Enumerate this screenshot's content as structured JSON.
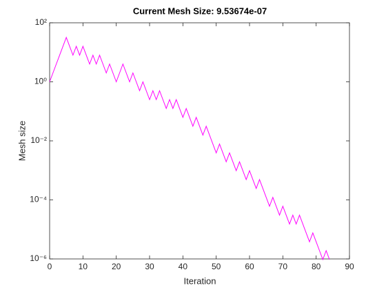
{
  "chart_data": {
    "type": "line",
    "title": "Current Mesh Size: 9.53674e-07",
    "xlabel": "Iteration",
    "ylabel": "Mesh size",
    "yscale": "log",
    "xlim": [
      0,
      90
    ],
    "ylim": [
      1e-06,
      100
    ],
    "xticks": [
      0,
      10,
      20,
      30,
      40,
      50,
      60,
      70,
      80,
      90
    ],
    "yticks": [
      {
        "value": 100,
        "label": "10²"
      },
      {
        "value": 1,
        "label": "10⁰"
      },
      {
        "value": 0.01,
        "label": "10⁻²"
      },
      {
        "value": 0.0001,
        "label": "10⁻⁴"
      },
      {
        "value": 1e-06,
        "label": "10⁻⁶"
      }
    ],
    "x": [
      0,
      1,
      2,
      3,
      4,
      5,
      6,
      7,
      8,
      9,
      10,
      11,
      12,
      13,
      14,
      15,
      16,
      17,
      18,
      19,
      20,
      21,
      22,
      23,
      24,
      25,
      26,
      27,
      28,
      29,
      30,
      31,
      32,
      33,
      34,
      35,
      36,
      37,
      38,
      39,
      40,
      41,
      42,
      43,
      44,
      45,
      46,
      47,
      48,
      49,
      50,
      51,
      52,
      53,
      54,
      55,
      56,
      57,
      58,
      59,
      60,
      61,
      62,
      63,
      64,
      65,
      66,
      67,
      68,
      69,
      70,
      71,
      72,
      73,
      74,
      75,
      76,
      77,
      78,
      79,
      80,
      81,
      82,
      83,
      84
    ],
    "series": [
      {
        "color": "#ff00ff",
        "values": [
          1,
          2,
          4,
          8,
          16,
          32,
          16,
          8,
          16,
          8,
          16,
          8,
          4,
          8,
          4,
          8,
          4,
          2,
          4,
          2,
          1,
          2,
          4,
          2,
          1,
          2,
          1,
          0.5,
          1,
          0.5,
          0.25,
          0.5,
          0.25,
          0.5,
          0.25,
          0.125,
          0.25,
          0.125,
          0.25,
          0.125,
          0.0625,
          0.125,
          0.0625,
          0.03125,
          0.0625,
          0.03125,
          0.015625,
          0.03125,
          0.015625,
          0.0078125,
          0.00390625,
          0.0078125,
          0.00390625,
          0.001953125,
          0.00390625,
          0.001953125,
          0.0009765625,
          0.001953125,
          0.0009765625,
          0.00048828125,
          0.0009765625,
          0.00048828125,
          0.000244140625,
          0.00048828125,
          0.000244140625,
          0.0001220703125,
          6.103515625e-05,
          0.0001220703125,
          6.103515625e-05,
          3.0517578125e-05,
          6.103515625e-05,
          3.0517578125e-05,
          1.52587890625e-05,
          3.0517578125e-05,
          1.52587890625e-05,
          3.0517578125e-05,
          1.52587890625e-05,
          7.62939453125e-06,
          3.814697265625e-06,
          7.62939453125e-06,
          3.814697265625e-06,
          1.9073486328125e-06,
          9.5367431640625e-07,
          1.9073486328125e-06,
          9.5367431640625e-07
        ]
      }
    ]
  }
}
